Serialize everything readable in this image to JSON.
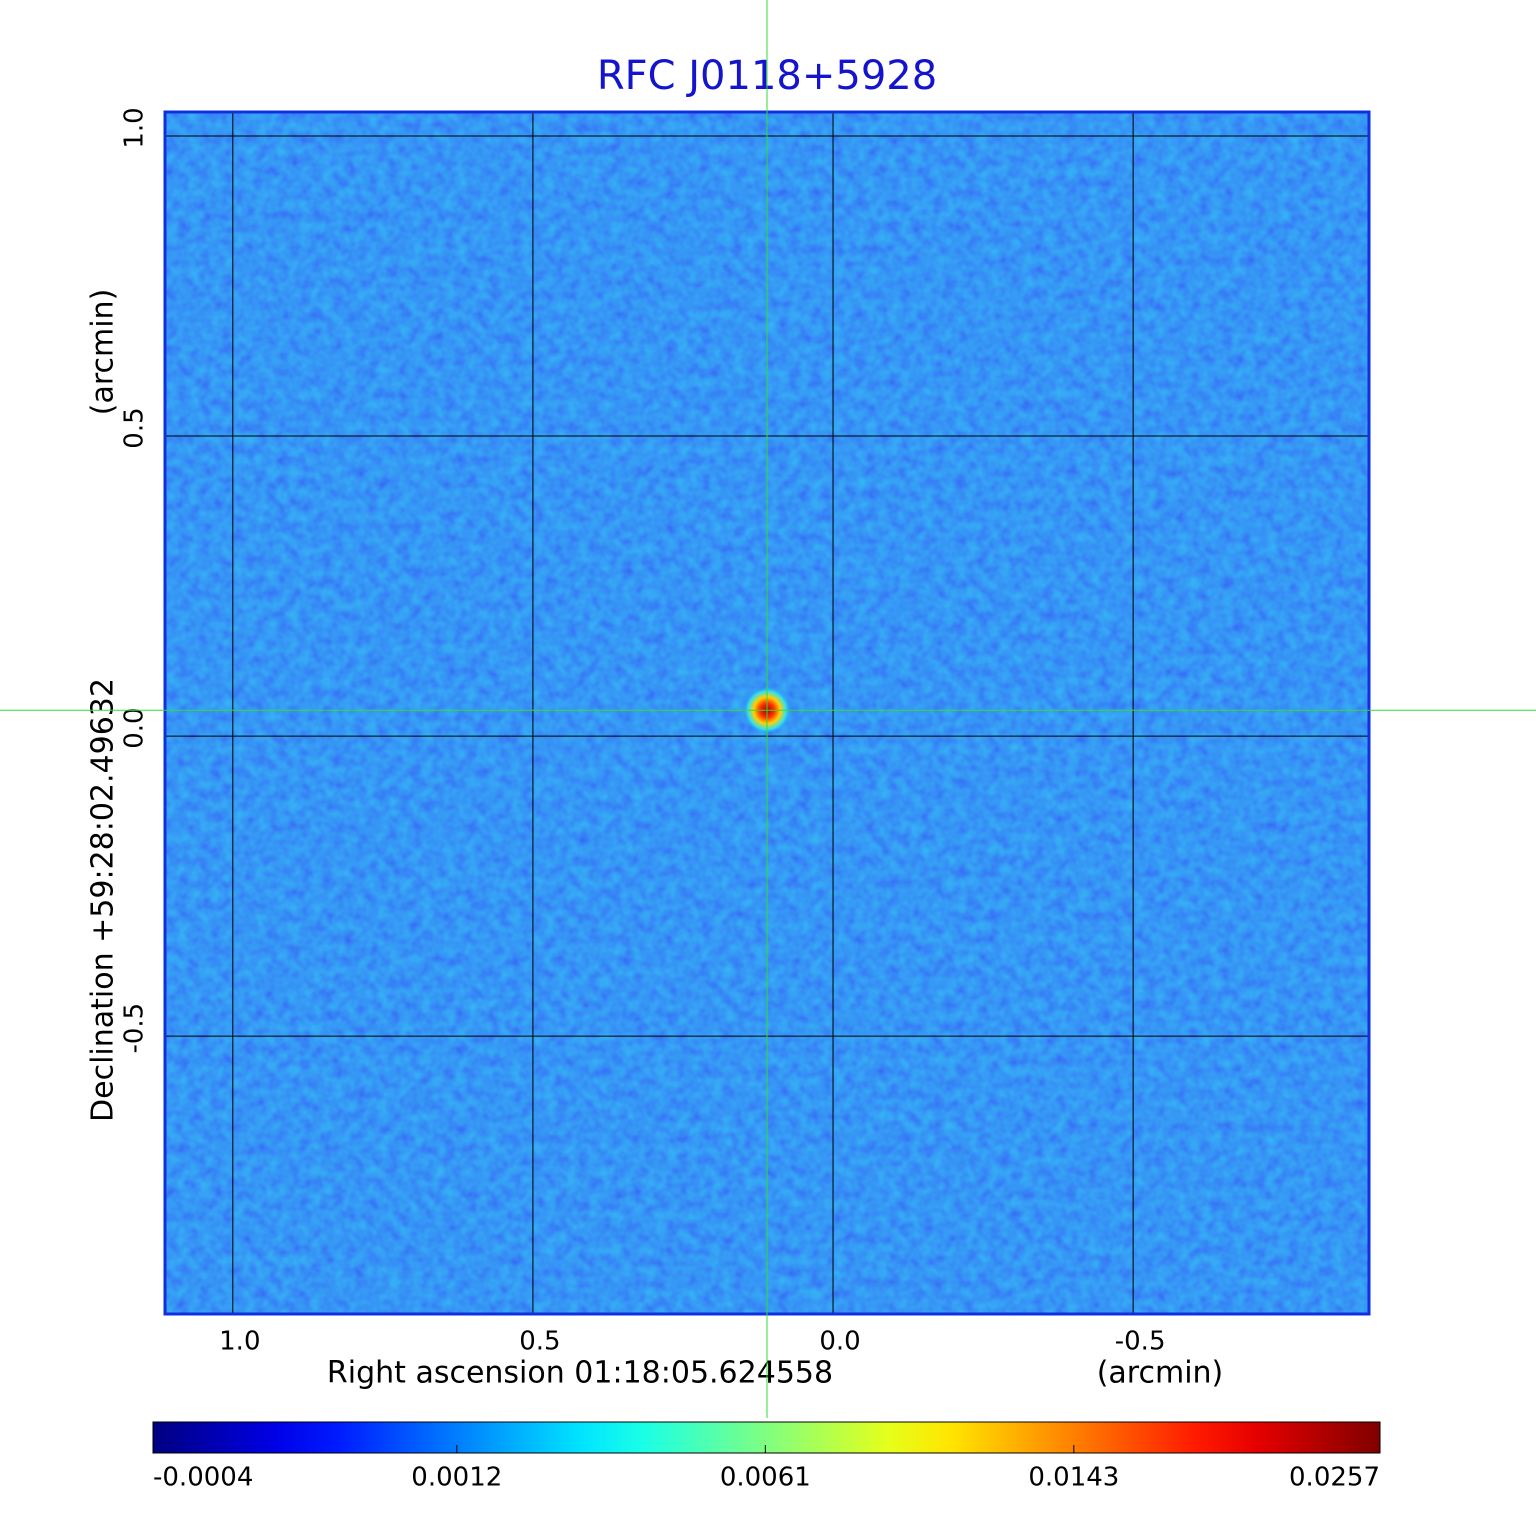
{
  "chart_data": {
    "type": "image",
    "title": "RFC J0118+5928",
    "x_label": "Right ascension  01:18:05.624558",
    "x_unit": "(arcmin)",
    "y_label": "Declination  +59:28:02.49632",
    "y_unit": "(arcmin)",
    "xlim": [
      1.113,
      -0.893
    ],
    "ylim": [
      -0.963,
      1.04
    ],
    "xticks": [
      {
        "value": 1,
        "label": "1.0"
      },
      0.5,
      {
        "value": 0,
        "label": "0.0"
      },
      -0.5
    ],
    "yticks": [
      -0.5,
      {
        "value": 0,
        "label": "0.0"
      },
      0.5,
      {
        "value": 1,
        "label": "1.0"
      }
    ],
    "grid": true,
    "colormap": "jet",
    "colorbar_scale": "sqrt",
    "clim": [
      -0.0004,
      0.0257
    ],
    "colorbar_ticks": [
      -0.0004,
      0.0012,
      0.0061,
      0.0143,
      0.0257
    ],
    "source": {
      "x": 0.11,
      "y": 0.043,
      "peak": 0.0257
    },
    "crosshair_color": "#33dd33"
  }
}
